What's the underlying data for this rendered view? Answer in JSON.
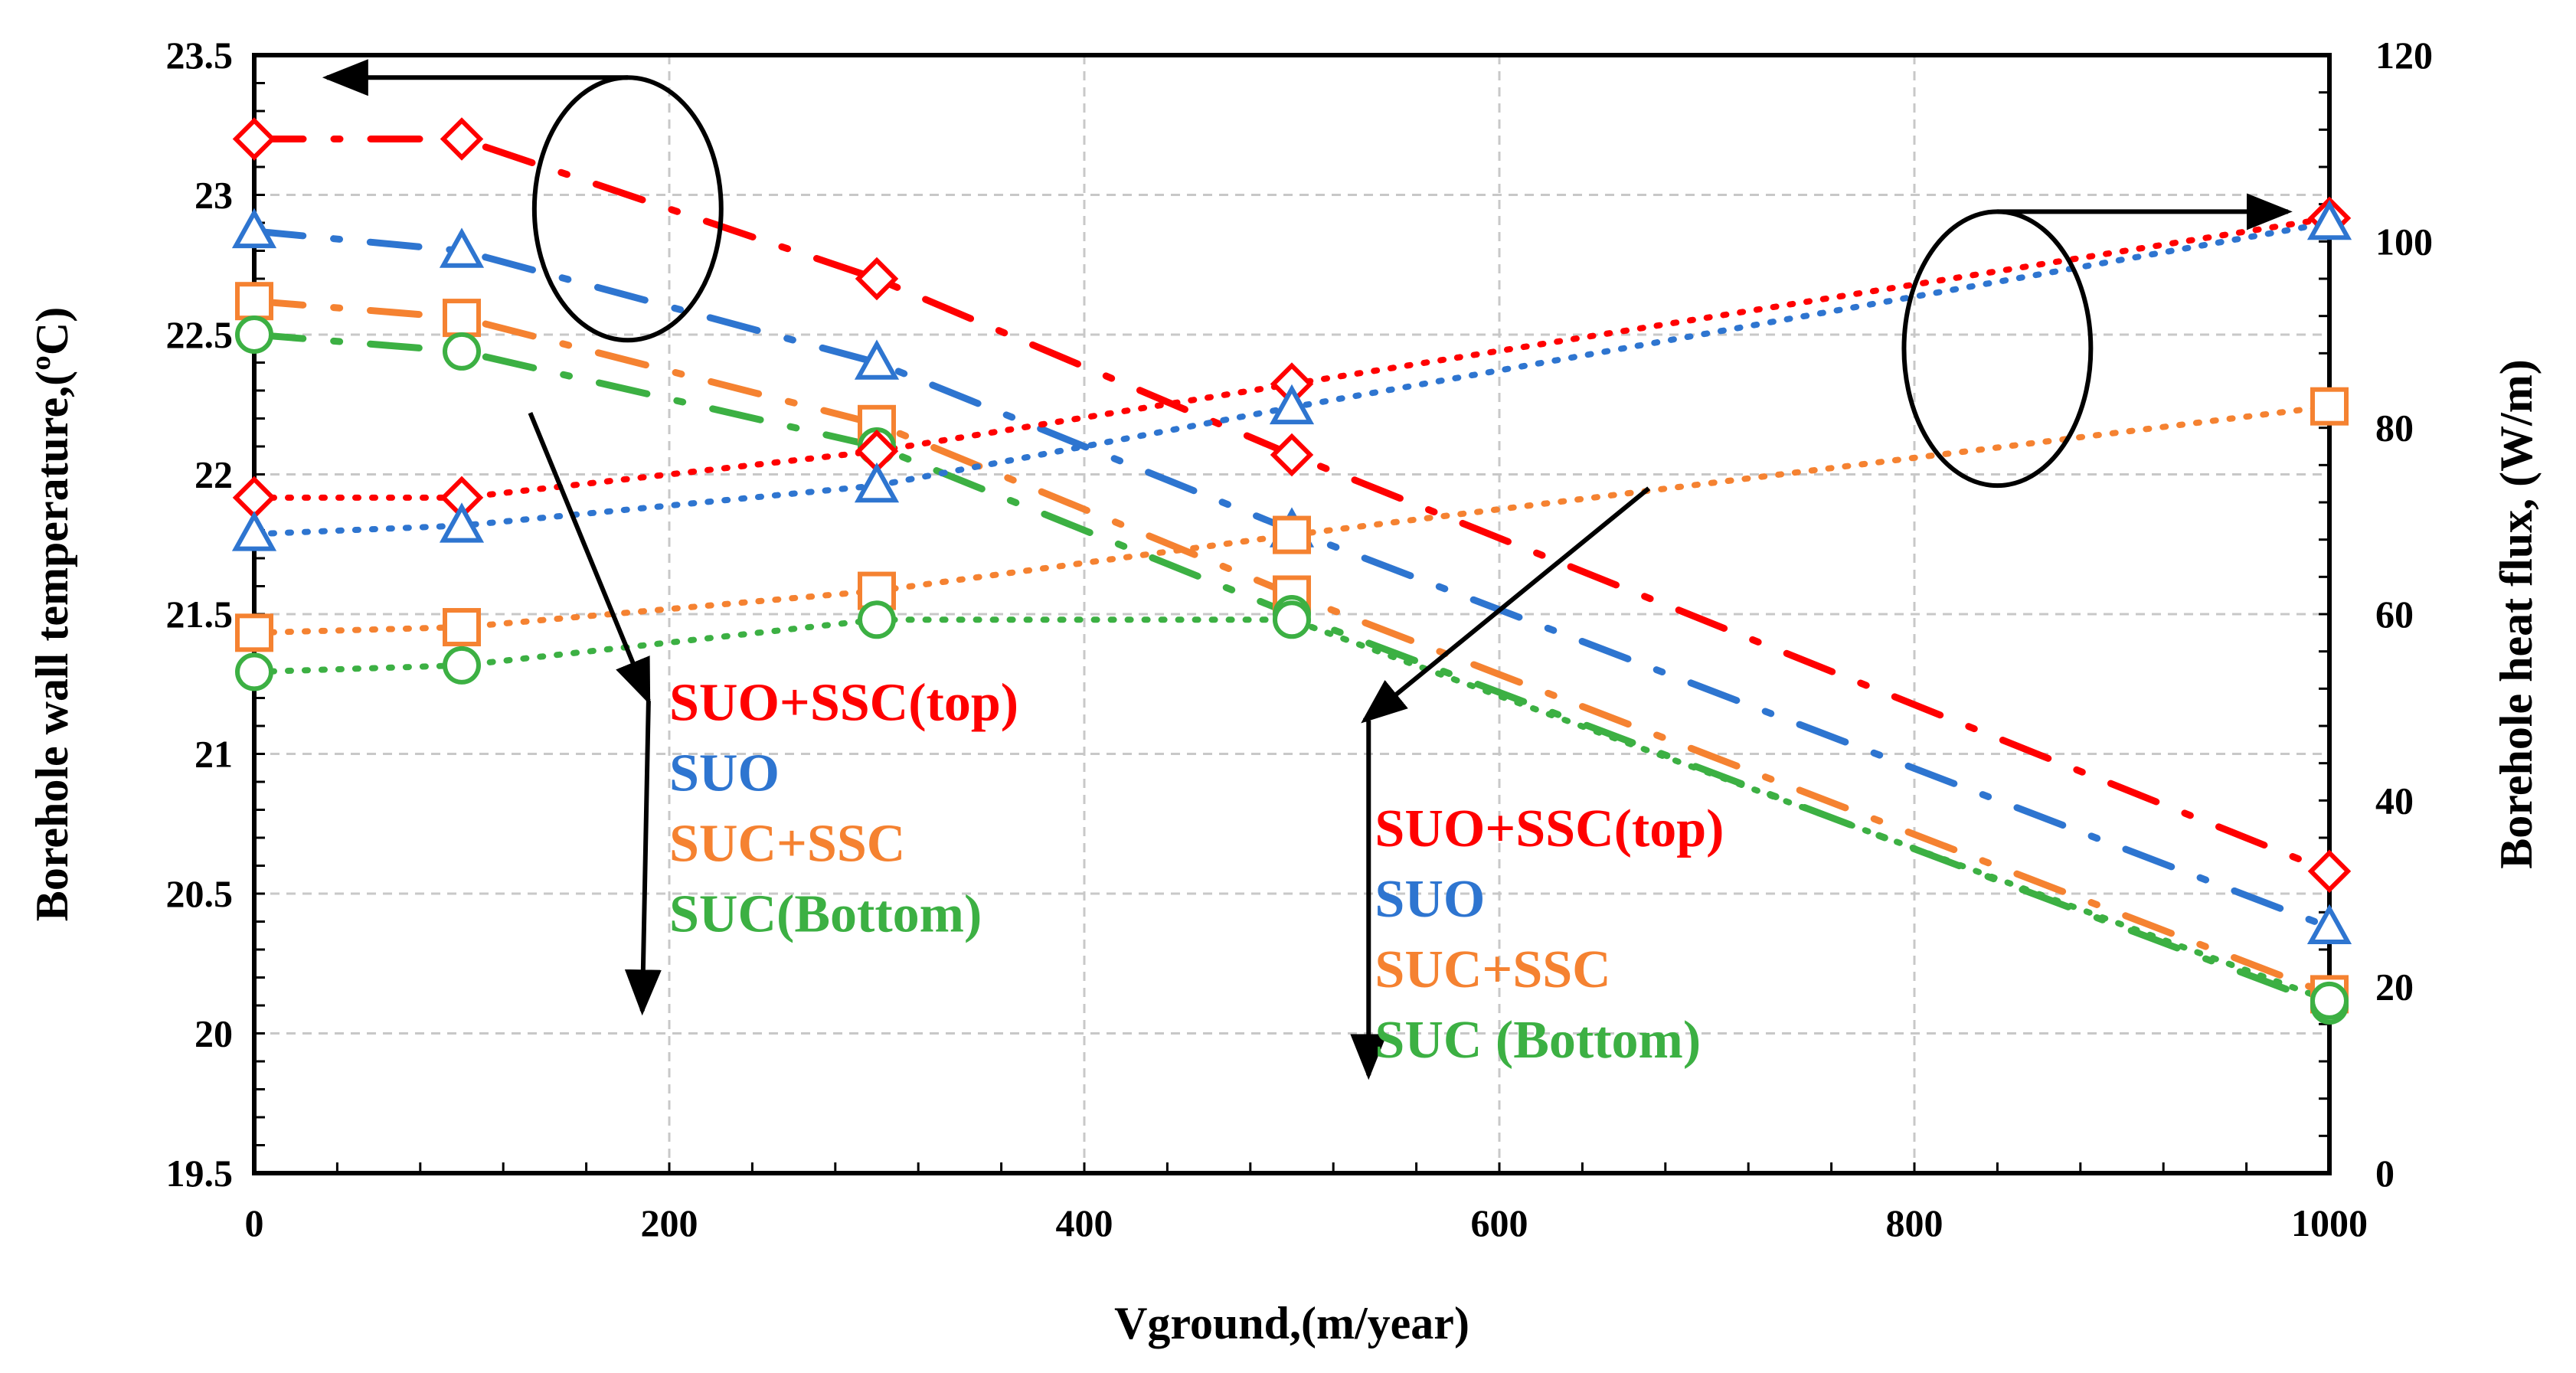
{
  "chart_data": {
    "type": "line",
    "xlabel": "Vground,(m/year)",
    "ylabel_left": "Borehole wall temperature,(ºC)",
    "ylabel_right": "Borehole heat flux, (W/m)",
    "xlim": [
      0,
      1000
    ],
    "ylim_left": [
      19.5,
      23.5
    ],
    "ylim_right": [
      0,
      120
    ],
    "x_ticks": [
      "0",
      "200",
      "400",
      "600",
      "800",
      "1000"
    ],
    "y_left_ticks": [
      "19.5",
      "20",
      "20.5",
      "21",
      "21.5",
      "22",
      "22.5",
      "23",
      "23.5"
    ],
    "y_right_ticks": [
      "0",
      "20",
      "40",
      "60",
      "80",
      "100",
      "120"
    ],
    "grid": true,
    "colors": {
      "suo_ssc_top": "#ff0000",
      "suo": "#2e75d0",
      "suc_ssc": "#f58231",
      "suc_bottom": "#3cb043",
      "annotation": "#000000"
    },
    "series": [
      {
        "name": "SUO+SSC(top)",
        "key": "suo_ssc_top",
        "axis": "left",
        "marker": "diamond",
        "style": "dashdot",
        "x": [
          0,
          100,
          300,
          500,
          1000
        ],
        "y": [
          23.2,
          23.2,
          22.7,
          22.07,
          20.58
        ]
      },
      {
        "name": "SUO",
        "key": "suo",
        "axis": "left",
        "marker": "triangle",
        "style": "dashdot",
        "x": [
          0,
          100,
          300,
          500,
          1000
        ],
        "y": [
          22.87,
          22.8,
          22.4,
          21.8,
          20.38
        ]
      },
      {
        "name": "SUC+SSC",
        "key": "suc_ssc",
        "axis": "left",
        "marker": "square",
        "style": "dashdot",
        "x": [
          0,
          100,
          300,
          500,
          1000
        ],
        "y": [
          22.62,
          22.56,
          22.18,
          21.57,
          20.14
        ]
      },
      {
        "name": "SUC(Bottom)",
        "key": "suc_bottom",
        "axis": "left",
        "marker": "circle",
        "style": "dashdot",
        "x": [
          0,
          100,
          300,
          500,
          1000
        ],
        "y": [
          22.5,
          22.44,
          22.1,
          21.5,
          20.1
        ]
      },
      {
        "name": "SUO+SSC(top)",
        "key": "suo_ssc_top",
        "axis": "right",
        "marker": "diamond",
        "style": "dotted",
        "x": [
          0,
          100,
          300,
          500,
          1000
        ],
        "y": [
          72.5,
          72.5,
          77.5,
          84.7,
          102.5
        ]
      },
      {
        "name": "SUO",
        "key": "suo",
        "axis": "right",
        "marker": "triangle",
        "style": "dotted",
        "x": [
          0,
          100,
          300,
          500,
          1000
        ],
        "y": [
          68.6,
          69.5,
          73.8,
          82.2,
          102
        ]
      },
      {
        "name": "SUC+SSC",
        "key": "suc_ssc",
        "axis": "right",
        "marker": "square",
        "style": "dotted",
        "x": [
          0,
          100,
          300,
          500,
          1000
        ],
        "y": [
          58,
          58.6,
          62.5,
          68.5,
          82.3
        ]
      },
      {
        "name": "SUC(Bottom)",
        "key": "suc_bottom",
        "axis": "right",
        "marker": "circle",
        "style": "dotted",
        "x": [
          0,
          100,
          300,
          500,
          1000
        ],
        "y": [
          53.8,
          54.5,
          59.4,
          59.4,
          18.5
        ]
      }
    ],
    "legend_groups": [
      {
        "position": "left",
        "entries": [
          {
            "key": "suo_ssc_top",
            "label": "SUO+SSC(top)"
          },
          {
            "key": "suo",
            "label": "SUO"
          },
          {
            "key": "suc_ssc",
            "label": "SUC+SSC"
          },
          {
            "key": "suc_bottom",
            "label": "SUC(Bottom)"
          }
        ]
      },
      {
        "position": "center-right",
        "entries": [
          {
            "key": "suo_ssc_top",
            "label": "SUO+SSC(top)"
          },
          {
            "key": "suo",
            "label": "SUO"
          },
          {
            "key": "suc_ssc",
            "label": "SUC+SSC"
          },
          {
            "key": "suc_bottom",
            "label": "SUC (Bottom)"
          }
        ]
      }
    ],
    "annotations": [
      {
        "type": "ellipse",
        "shape": "ellipse",
        "target": "left-axis",
        "center": {
          "x": 180,
          "y": 22.95
        },
        "radius": {
          "x": 45,
          "y": 0.47
        },
        "axis": "left"
      },
      {
        "type": "arrow",
        "target": "left-axis",
        "from": {
          "x": 180,
          "y": 23.42
        },
        "to": {
          "x": 35,
          "y": 23.42
        },
        "axis": "left"
      },
      {
        "type": "ellipse",
        "shape": "ellipse",
        "target": "right-axis",
        "center": {
          "x": 840,
          "y": 22.45
        },
        "radius": {
          "x": 45,
          "y": 0.49
        },
        "axis": "left"
      },
      {
        "type": "arrow",
        "target": "right-axis",
        "from": {
          "x": 840,
          "y": 22.94
        },
        "to": {
          "x": 980,
          "y": 22.94
        },
        "axis": "left"
      },
      {
        "type": "arrow",
        "target": "legend-left",
        "from": {
          "x": 133,
          "y": 22.22
        },
        "to": {
          "x": 190,
          "y": 21.19
        },
        "axis": "left"
      },
      {
        "type": "arrow",
        "target": "legend-left",
        "from": {
          "x": 190,
          "y": 21.19
        },
        "to": {
          "x": 187,
          "y": 20.08
        },
        "axis": "left"
      },
      {
        "type": "arrow",
        "target": "legend-right",
        "from": {
          "x": 672,
          "y": 21.95
        },
        "to": {
          "x": 535,
          "y": 21.12
        },
        "axis": "left"
      },
      {
        "type": "arrow",
        "target": "legend-right",
        "from": {
          "x": 537,
          "y": 21.12
        },
        "to": {
          "x": 537,
          "y": 19.85
        },
        "axis": "left"
      }
    ]
  }
}
